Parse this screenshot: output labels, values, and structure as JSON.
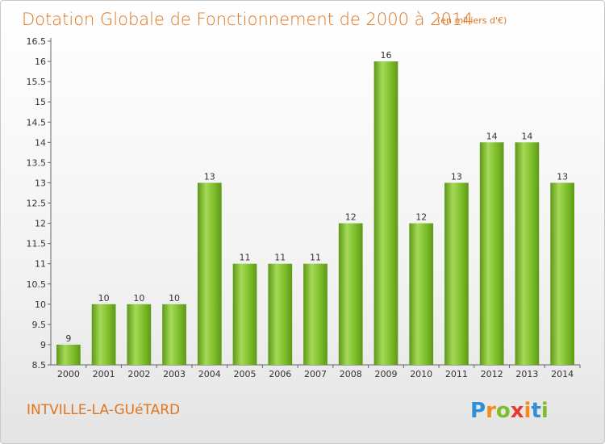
{
  "chart_data": {
    "type": "bar",
    "title": "Dotation Globale de Fonctionnement de 2000 à 2014",
    "subtitle": "(en milliers d'€)",
    "categories": [
      "2000",
      "2001",
      "2002",
      "2003",
      "2004",
      "2005",
      "2006",
      "2007",
      "2008",
      "2009",
      "2010",
      "2011",
      "2012",
      "2013",
      "2014"
    ],
    "values": [
      9,
      10,
      10,
      10,
      13,
      11,
      11,
      11,
      12,
      16,
      12,
      13,
      14,
      14,
      13
    ],
    "data_labels": [
      "9",
      "10",
      "10",
      "10",
      "13",
      "11",
      "11",
      "11",
      "12",
      "16",
      "12",
      "13",
      "14",
      "14",
      "13"
    ],
    "ylim": [
      8.5,
      16.5
    ],
    "yticks": [
      "8.5",
      "9",
      "9.5",
      "10",
      "10.5",
      "11",
      "11.5",
      "12",
      "12.5",
      "13",
      "13.5",
      "14",
      "14.5",
      "15",
      "15.5",
      "16",
      "16.5"
    ],
    "xlabel": "",
    "ylabel": "",
    "grid": false,
    "bar_color": "#7cbd2a",
    "bar_color_light": "#a5d957",
    "bar_color_dark": "#5e9818"
  },
  "commune_name": "INTVILLE-LA-GUéTARD",
  "brand": {
    "letters": [
      "P",
      "r",
      "o",
      "x",
      "i",
      "t",
      "i"
    ],
    "letter_colors": [
      "#2f8fd8",
      "#f08c1a",
      "#7cbd2a",
      "#e53a2e",
      "#f08c1a",
      "#2f8fd8",
      "#7cbd2a"
    ]
  }
}
